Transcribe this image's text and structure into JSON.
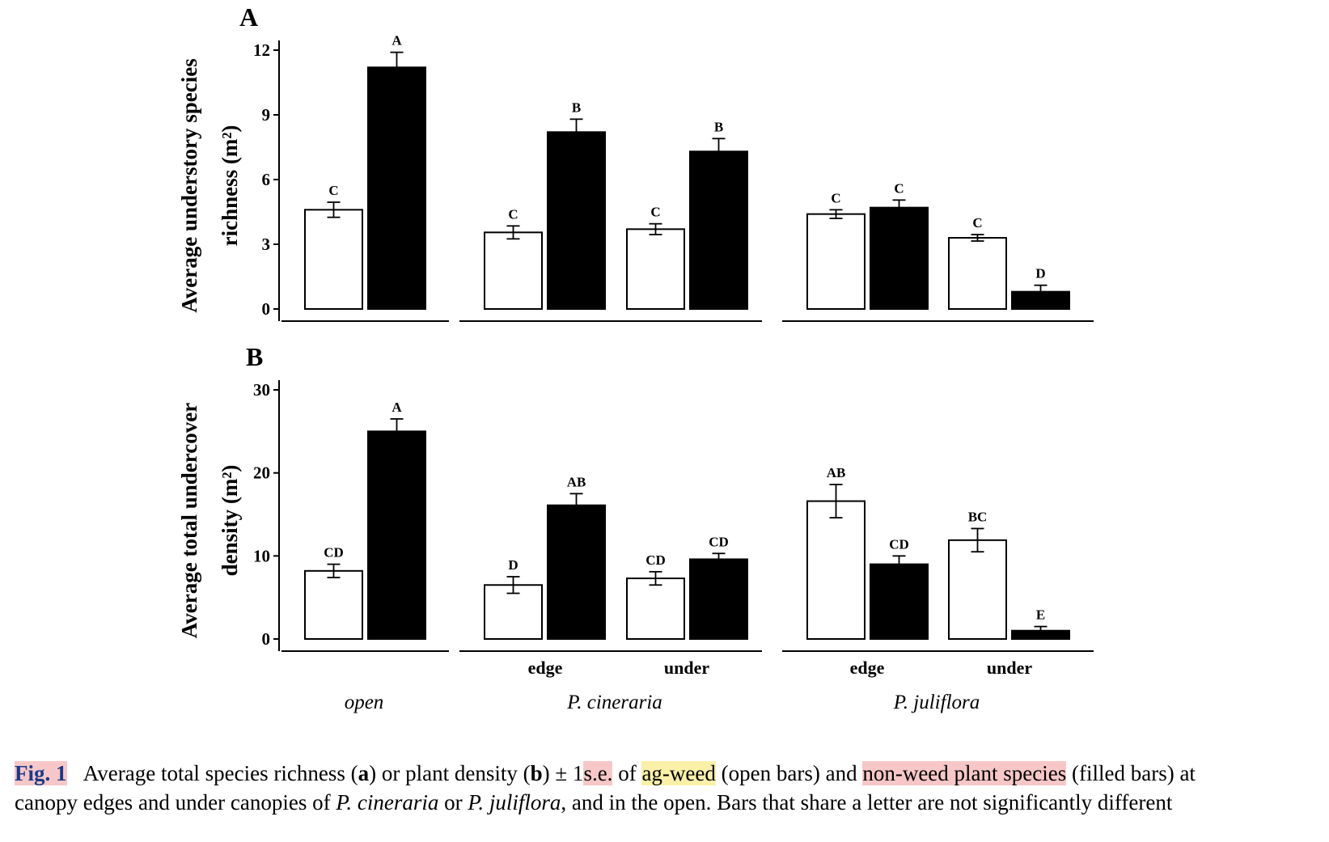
{
  "chart_data": [
    {
      "type": "bar",
      "panel_label": "A",
      "ylabel": [
        "Average understory species",
        "richness (m²)"
      ],
      "ylim": [
        0,
        12
      ],
      "yticks": [
        0,
        3,
        6,
        9,
        12
      ],
      "groups": [
        {
          "name": "open",
          "sub": [
            "",
            ""
          ]
        },
        {
          "name": "P. cineraria",
          "sub": [
            "edge",
            "under"
          ]
        },
        {
          "name": "P. juliflora",
          "sub": [
            "edge",
            "under"
          ]
        }
      ],
      "series": [
        {
          "name": "ag-weed",
          "fill": "#ffffff",
          "values": [
            4.6,
            3.55,
            3.7,
            4.4,
            3.3
          ],
          "errors": [
            0.35,
            0.3,
            0.25,
            0.2,
            0.15
          ],
          "letters": [
            "C",
            "C",
            "C",
            "C",
            "C"
          ]
        },
        {
          "name": "non-weed plant species",
          "fill": "#000000",
          "values": [
            11.2,
            8.2,
            7.3,
            4.7,
            0.8
          ],
          "errors": [
            0.7,
            0.6,
            0.6,
            0.35,
            0.3
          ],
          "letters": [
            "A",
            "B",
            "B",
            "C",
            "D"
          ]
        }
      ]
    },
    {
      "type": "bar",
      "panel_label": "B",
      "ylabel": [
        "Average total undercover",
        "density (m²)"
      ],
      "ylim": [
        0,
        30
      ],
      "yticks": [
        0,
        10,
        20,
        30
      ],
      "groups": [
        {
          "name": "open",
          "sub": [
            "",
            ""
          ]
        },
        {
          "name": "P. cineraria",
          "sub": [
            "edge",
            "under"
          ]
        },
        {
          "name": "P. juliflora",
          "sub": [
            "edge",
            "under"
          ]
        }
      ],
      "series": [
        {
          "name": "ag-weed",
          "fill": "#ffffff",
          "values": [
            8.2,
            6.5,
            7.3,
            16.6,
            11.9
          ],
          "errors": [
            0.8,
            1.0,
            0.8,
            2.0,
            1.4
          ],
          "letters": [
            "CD",
            "D",
            "CD",
            "AB",
            "BC"
          ]
        },
        {
          "name": "non-weed plant species",
          "fill": "#000000",
          "values": [
            25.0,
            16.1,
            9.6,
            9.0,
            1.0
          ],
          "errors": [
            1.5,
            1.4,
            0.7,
            1.0,
            0.5
          ],
          "letters": [
            "A",
            "AB",
            "CD",
            "CD",
            "E"
          ]
        }
      ]
    }
  ],
  "caption": {
    "fig_label": "Fig. 1",
    "t1": "Average total species richness (",
    "a": "a",
    "t2": ") or plant density (",
    "b": "b",
    "t3": ") ± 1",
    "se": "s.e.",
    "t4": " of ",
    "agweed": "ag-weed",
    "t5": " (open bars) and ",
    "nonweed": "non-weed plant species",
    "t6": " (filled bars) at",
    "l2a": "canopy edges and under canopies of ",
    "pc": "P. cineraria",
    "l2b": " or ",
    "pj": "P. juliflora",
    "l2c": ", and in the open. Bars that share a letter are not significantly different"
  }
}
